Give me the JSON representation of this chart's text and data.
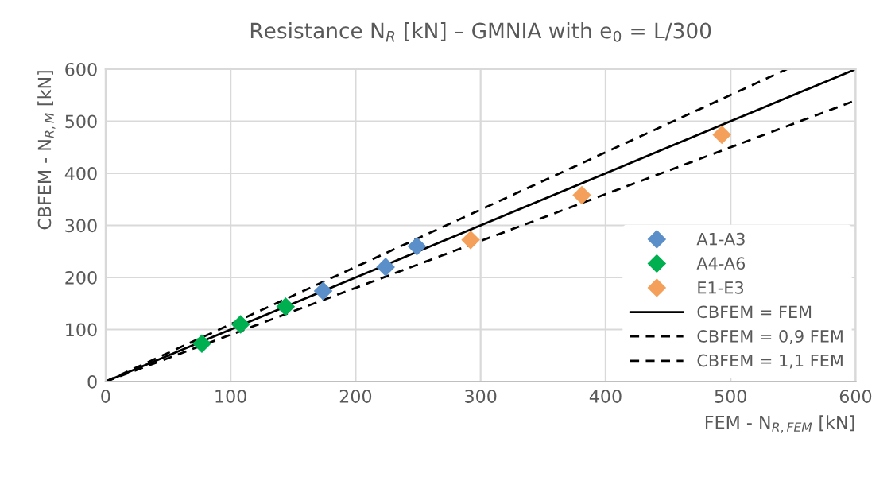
{
  "chart_data": {
    "type": "scatter",
    "title": "Resistance N$_{R}$ [kN] – GMNIA with e$_{0}$ = L/300",
    "xlabel": "FEM - N$_{R,FEM}$ [kN]",
    "ylabel": "CBFEM - N$_{R,M}$ [kN]",
    "xlim": [
      0,
      600
    ],
    "ylim": [
      0,
      600
    ],
    "xticks": [
      0,
      100,
      200,
      300,
      400,
      500,
      600
    ],
    "yticks": [
      0,
      100,
      200,
      300,
      400,
      500,
      600
    ],
    "grid": true,
    "legend": "bottom right",
    "marker": "diamond",
    "series": [
      {
        "name": "A1-A3",
        "color": "#5b8fc9",
        "x": [
          174,
          224,
          249
        ],
        "values": [
          174,
          220,
          260
        ]
      },
      {
        "name": "A4-A6",
        "color": "#00b050",
        "x": [
          77,
          108,
          144
        ],
        "values": [
          73,
          110,
          144
        ]
      },
      {
        "name": "E1-E3",
        "color": "#f5a05a",
        "x": [
          292,
          381,
          493
        ],
        "values": [
          272,
          358,
          474
        ]
      },
      {
        "name": "CBFEM = FEM",
        "type": "line",
        "marker": "none",
        "line_style": "solid",
        "color": "#000000",
        "x": [
          0,
          600
        ],
        "values": [
          0,
          600
        ]
      },
      {
        "name": "CBFEM = 0,9 FEM",
        "type": "line",
        "marker": "none",
        "line_style": "dashed",
        "color": "#000000",
        "x": [
          0,
          600
        ],
        "values": [
          0,
          540
        ]
      },
      {
        "name": "CBFEM = 1,1 FEM",
        "type": "line",
        "marker": "none",
        "line_style": "dashed",
        "color": "#000000",
        "x": [
          0,
          545
        ],
        "values": [
          0,
          600
        ]
      }
    ]
  }
}
